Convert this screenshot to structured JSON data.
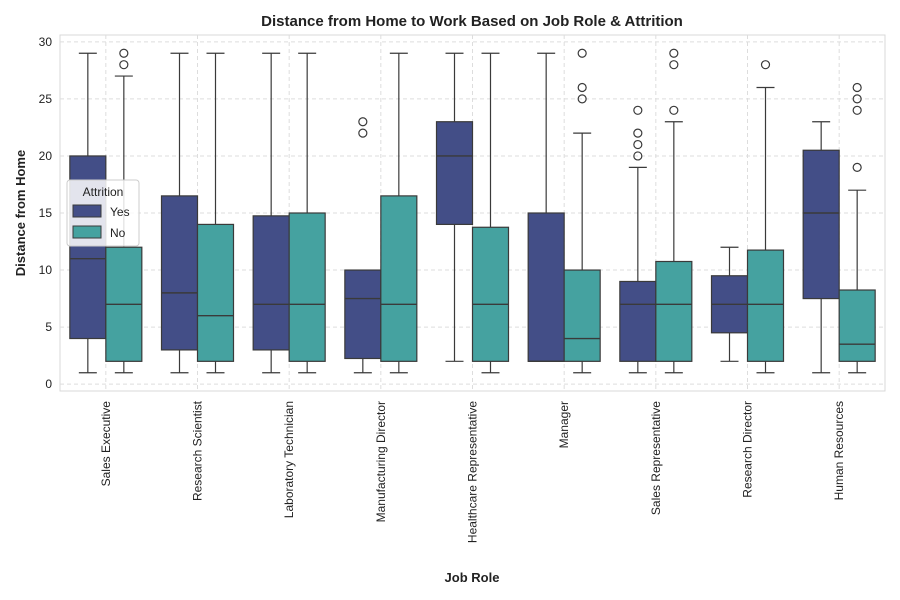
{
  "chart_data": {
    "type": "boxplot",
    "title": "Distance from Home to Work Based on Job Role & Attrition",
    "xlabel": "Job Role",
    "ylabel": "Distance from Home",
    "ylim": [
      -0.6,
      30.6
    ],
    "yticks": [
      0,
      5,
      10,
      15,
      20,
      25,
      30
    ],
    "grid": true,
    "legend": {
      "title": "Attrition",
      "placement": "left",
      "entries": [
        "Yes",
        "No"
      ]
    },
    "colors": {
      "Yes": "#434e87",
      "No": "#45a2a0",
      "line": "#3a3a3a",
      "grid": "#dddddd"
    },
    "categories": [
      "Sales Executive",
      "Research Scientist",
      "Laboratory Technician",
      "Manufacturing Director",
      "Healthcare Representative",
      "Manager",
      "Sales Representative",
      "Research Director",
      "Human Resources"
    ],
    "series": [
      {
        "name": "Yes",
        "boxes": [
          {
            "whislo": 1,
            "q1": 4,
            "med": 11,
            "q3": 20,
            "whishi": 29,
            "fliers": []
          },
          {
            "whislo": 1,
            "q1": 3,
            "med": 8,
            "q3": 16.5,
            "whishi": 29,
            "fliers": []
          },
          {
            "whislo": 1,
            "q1": 3,
            "med": 7,
            "q3": 14.75,
            "whishi": 29,
            "fliers": []
          },
          {
            "whislo": 1,
            "q1": 2.25,
            "med": 7.5,
            "q3": 10,
            "whishi": 10,
            "fliers": [
              22,
              23
            ]
          },
          {
            "whislo": 2,
            "q1": 14,
            "med": 20,
            "q3": 23,
            "whishi": 29,
            "fliers": []
          },
          {
            "whislo": 2,
            "q1": 2,
            "med": 2,
            "q3": 15,
            "whishi": 29,
            "fliers": []
          },
          {
            "whislo": 1,
            "q1": 2,
            "med": 7,
            "q3": 9,
            "whishi": 19,
            "fliers": [
              20,
              21,
              22,
              24
            ]
          },
          {
            "whislo": 2,
            "q1": 4.5,
            "med": 7,
            "q3": 9.5,
            "whishi": 12,
            "fliers": []
          },
          {
            "whislo": 1,
            "q1": 7.5,
            "med": 15,
            "q3": 20.5,
            "whishi": 23,
            "fliers": []
          }
        ]
      },
      {
        "name": "No",
        "boxes": [
          {
            "whislo": 1,
            "q1": 2,
            "med": 7,
            "q3": 12,
            "whishi": 27,
            "fliers": [
              28,
              29
            ]
          },
          {
            "whislo": 1,
            "q1": 2,
            "med": 6,
            "q3": 14,
            "whishi": 29,
            "fliers": []
          },
          {
            "whislo": 1,
            "q1": 2,
            "med": 7,
            "q3": 15,
            "whishi": 29,
            "fliers": []
          },
          {
            "whislo": 1,
            "q1": 2,
            "med": 7,
            "q3": 16.5,
            "whishi": 29,
            "fliers": []
          },
          {
            "whislo": 1,
            "q1": 2,
            "med": 7,
            "q3": 13.75,
            "whishi": 29,
            "fliers": []
          },
          {
            "whislo": 1,
            "q1": 2,
            "med": 4,
            "q3": 10,
            "whishi": 22,
            "fliers": [
              25,
              26,
              29
            ]
          },
          {
            "whislo": 1,
            "q1": 2,
            "med": 7,
            "q3": 10.75,
            "whishi": 23,
            "fliers": [
              24,
              28,
              29
            ]
          },
          {
            "whislo": 1,
            "q1": 2,
            "med": 7,
            "q3": 11.75,
            "whishi": 26,
            "fliers": [
              28
            ]
          },
          {
            "whislo": 1,
            "q1": 2,
            "med": 3.5,
            "q3": 8.25,
            "whishi": 17,
            "fliers": [
              19,
              24,
              25,
              26
            ]
          }
        ]
      }
    ]
  }
}
